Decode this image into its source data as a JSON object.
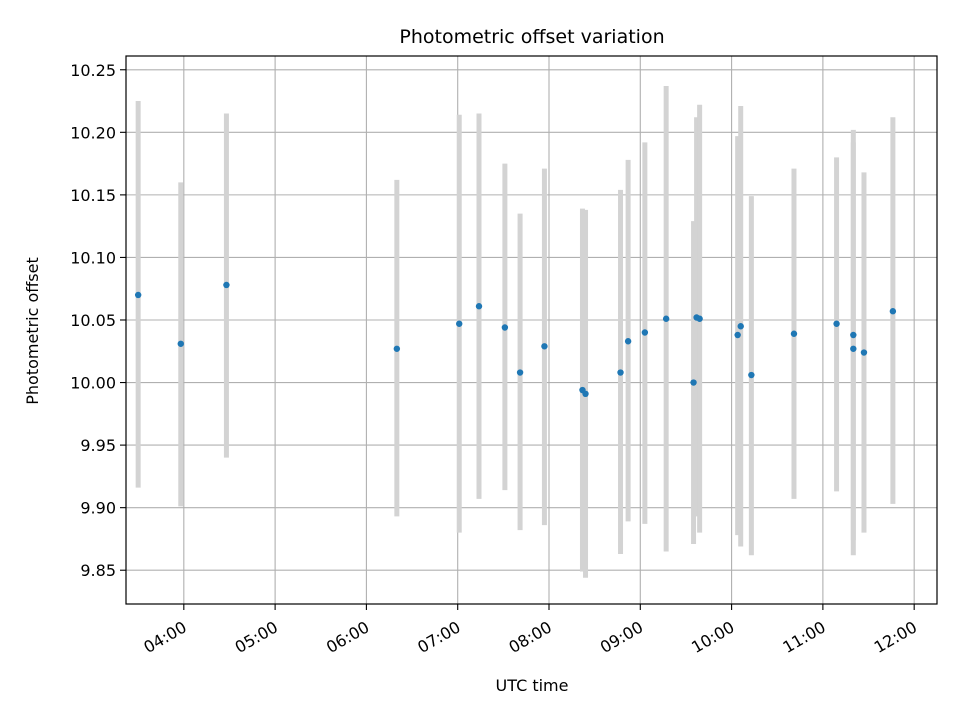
{
  "chart_data": {
    "type": "scatter",
    "title": "Photometric offset variation",
    "xlabel": "UTC time",
    "ylabel": "Photometric offset",
    "grid": true,
    "x_tick_labels": [
      "04:00",
      "05:00",
      "06:00",
      "07:00",
      "08:00",
      "09:00",
      "10:00",
      "11:00",
      "12:00"
    ],
    "y_tick_labels": [
      "9.85",
      "9.90",
      "9.95",
      "10.00",
      "10.05",
      "10.10",
      "10.15",
      "10.20",
      "10.25"
    ],
    "x_ticks_hours": [
      4,
      5,
      6,
      7,
      8,
      9,
      10,
      11,
      12
    ],
    "y_ticks": [
      9.85,
      9.9,
      9.95,
      10.0,
      10.05,
      10.1,
      10.15,
      10.2,
      10.25
    ],
    "xlim": [
      "03:22",
      "12:15"
    ],
    "ylim": [
      9.823,
      10.261
    ],
    "colors": {
      "points": "#1f77b4",
      "error_bars": "#d3d3d3",
      "grid": "#b0b0b0"
    },
    "points": [
      {
        "time": "03:30",
        "y": 10.07,
        "y_low": 9.916,
        "y_high": 10.225
      },
      {
        "time": "03:58",
        "y": 10.031,
        "y_low": 9.901,
        "y_high": 10.16
      },
      {
        "time": "04:28",
        "y": 10.078,
        "y_low": 9.94,
        "y_high": 10.215
      },
      {
        "time": "06:20",
        "y": 10.027,
        "y_low": 9.893,
        "y_high": 10.162
      },
      {
        "time": "07:01",
        "y": 10.047,
        "y_low": 9.88,
        "y_high": 10.214
      },
      {
        "time": "07:14",
        "y": 10.061,
        "y_low": 9.907,
        "y_high": 10.215
      },
      {
        "time": "07:31",
        "y": 10.044,
        "y_low": 9.914,
        "y_high": 10.175
      },
      {
        "time": "07:41",
        "y": 10.008,
        "y_low": 9.882,
        "y_high": 10.135
      },
      {
        "time": "07:57",
        "y": 10.029,
        "y_low": 9.886,
        "y_high": 10.171
      },
      {
        "time": "08:22",
        "y": 9.994,
        "y_low": 9.849,
        "y_high": 10.139
      },
      {
        "time": "08:24",
        "y": 9.991,
        "y_low": 9.844,
        "y_high": 10.138
      },
      {
        "time": "08:47",
        "y": 10.008,
        "y_low": 9.863,
        "y_high": 10.154
      },
      {
        "time": "08:52",
        "y": 10.033,
        "y_low": 9.889,
        "y_high": 10.178
      },
      {
        "time": "09:03",
        "y": 10.04,
        "y_low": 9.887,
        "y_high": 10.192
      },
      {
        "time": "09:17",
        "y": 10.051,
        "y_low": 9.865,
        "y_high": 10.237
      },
      {
        "time": "09:35",
        "y": 10.0,
        "y_low": 9.871,
        "y_high": 10.129
      },
      {
        "time": "09:37",
        "y": 10.052,
        "y_low": 9.893,
        "y_high": 10.212
      },
      {
        "time": "09:39",
        "y": 10.051,
        "y_low": 9.88,
        "y_high": 10.222
      },
      {
        "time": "10:04",
        "y": 10.038,
        "y_low": 9.878,
        "y_high": 10.197
      },
      {
        "time": "10:06",
        "y": 10.045,
        "y_low": 9.869,
        "y_high": 10.221
      },
      {
        "time": "10:13",
        "y": 10.006,
        "y_low": 9.862,
        "y_high": 10.149
      },
      {
        "time": "10:41",
        "y": 10.039,
        "y_low": 9.907,
        "y_high": 10.171
      },
      {
        "time": "11:09",
        "y": 10.047,
        "y_low": 9.913,
        "y_high": 10.18
      },
      {
        "time": "11:20",
        "y": 10.038,
        "y_low": 9.874,
        "y_high": 10.202
      },
      {
        "time": "11:20",
        "y": 10.027,
        "y_low": 9.862,
        "y_high": 10.192
      },
      {
        "time": "11:27",
        "y": 10.024,
        "y_low": 9.88,
        "y_high": 10.168
      },
      {
        "time": "11:46",
        "y": 10.057,
        "y_low": 9.903,
        "y_high": 10.212
      }
    ]
  }
}
